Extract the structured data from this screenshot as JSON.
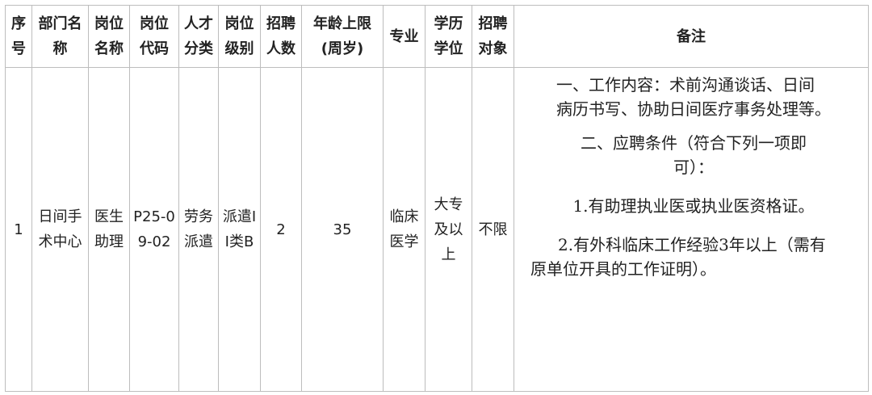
{
  "headers": [
    [
      "序",
      "号"
    ],
    [
      "部门名",
      "称"
    ],
    [
      "岗位",
      "名称"
    ],
    [
      "岗位",
      "代码"
    ],
    [
      "人才",
      "分类"
    ],
    [
      "岗位",
      "级别"
    ],
    [
      "招聘",
      "人数"
    ],
    [
      "年龄上限",
      "(周岁)"
    ],
    [
      "专业"
    ],
    [
      "学历",
      "学位"
    ],
    [
      "招聘",
      "对象"
    ],
    [
      "备注"
    ]
  ],
  "row": {
    "index": [
      "1"
    ],
    "department": [
      "日间手",
      "术中心"
    ],
    "position_name": [
      "医生",
      "助理"
    ],
    "position_code": [
      "P25-0",
      "9-02"
    ],
    "talent_category": [
      "劳务",
      "派遣"
    ],
    "position_level": [
      "派遣I",
      "I类B"
    ],
    "headcount": [
      "2"
    ],
    "age_limit": [
      "35"
    ],
    "major": [
      "临床",
      "医学"
    ],
    "education": [
      "大专",
      "及以",
      "上"
    ],
    "target": [
      "不限"
    ],
    "remarks": {
      "p1": [
        "一、工作内容：术前沟通谈话、日间",
        "病历书写、协助日间医疗事务处理等。"
      ],
      "p2": [
        "二、应聘条件（符合下列一项即",
        "可）："
      ],
      "p3": [
        "1.有助理执业医或执业医资格证。"
      ],
      "p4": [
        "2.有外科临床工作经验3年以上（需有",
        "原单位开具的工作证明）。"
      ]
    }
  }
}
